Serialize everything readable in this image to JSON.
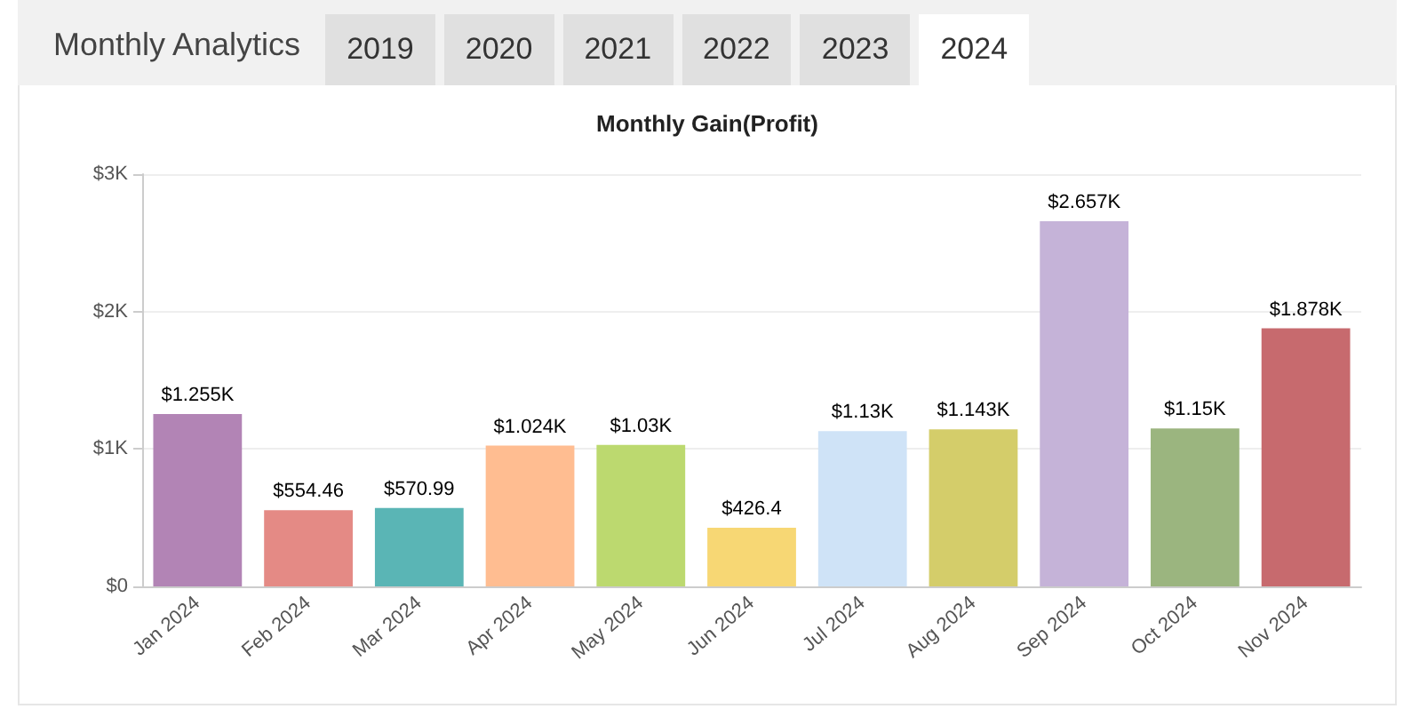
{
  "chart_data": {
    "type": "bar",
    "title": "Monthly Analytics",
    "subtitle": "Monthly Gain(Profit)",
    "annotations": [
      "2019",
      "2020",
      "2021",
      "2022",
      "2023",
      "2024"
    ],
    "categories": [
      "Jan 2024",
      "Feb 2024",
      "Mar 2024",
      "Apr 2024",
      "May 2024",
      "Jun 2024",
      "Jul 2024",
      "Aug 2024",
      "Sep 2024",
      "Oct 2024",
      "Nov 2024"
    ],
    "values": [
      1255,
      554.46,
      570.99,
      1024,
      1030,
      426.4,
      1130,
      1143,
      2657,
      1150,
      1878
    ],
    "value_labels": [
      "$1.255K",
      "$554.46",
      "$570.99",
      "$1.024K",
      "$1.03K",
      "$426.4",
      "$1.13K",
      "$1.143K",
      "$2.657K",
      "$1.15K",
      "$1.878K"
    ],
    "colors": [
      "#b284b5",
      "#e48a85",
      "#5ab5b5",
      "#ffbd91",
      "#bcd96f",
      "#f7d774",
      "#cfe3f7",
      "#d4cd6a",
      "#c5b3d8",
      "#9bb57f",
      "#c76a6e"
    ],
    "ylim": [
      0,
      3000
    ],
    "yticks": [
      {
        "value": 0,
        "label": "$0"
      },
      {
        "value": 1000,
        "label": "$1K"
      },
      {
        "value": 2000,
        "label": "$2K"
      },
      {
        "value": 3000,
        "label": "$3K"
      }
    ],
    "grid": "y"
  }
}
